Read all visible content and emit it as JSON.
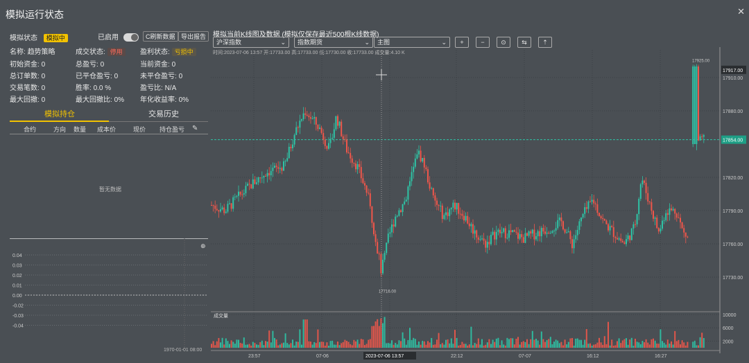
{
  "window": {
    "title": "模拟运行状态",
    "close_icon": "close-icon"
  },
  "left": {
    "row1": {
      "label": "模拟状态",
      "badge": "模拟中",
      "toggle_label": "已启用",
      "btn1": "C刷新数据",
      "btn2": "导出报告"
    },
    "row2": [
      {
        "label": "名称:",
        "value": "趋势策略"
      },
      {
        "label": "成交状态:",
        "value": "停用"
      },
      {
        "label": "盈利状态:",
        "value": "亏损中"
      }
    ],
    "row3": [
      {
        "label": "初始资金:",
        "value": "0"
      },
      {
        "label": "总盈亏:",
        "value": "0"
      },
      {
        "label": "当前资金:",
        "value": "0"
      }
    ],
    "row4": [
      {
        "label": "总订单数:",
        "value": "0"
      },
      {
        "label": "已平仓盈亏:",
        "value": "0"
      },
      {
        "label": "未平仓盈亏:",
        "value": "0"
      }
    ],
    "row5": [
      {
        "label": "交易笔数:",
        "value": "0"
      },
      {
        "label": "胜率:",
        "value": "0.0 %"
      },
      {
        "label": "盈亏比:",
        "value": "N/A"
      }
    ],
    "row6": [
      {
        "label": "最大回撤:",
        "value": "0"
      },
      {
        "label": "最大回撤比:",
        "value": "0%"
      },
      {
        "label": "年化收益率:",
        "value": "0%"
      }
    ],
    "tabs": [
      "模拟持仓",
      "交易历史"
    ],
    "columns": [
      "合约",
      "方向",
      "数量",
      "成本价",
      "现价",
      "持仓盈亏"
    ],
    "empty_text": "暂无数据",
    "mini_chart": {
      "y_ticks": [
        "0.04",
        "0.03",
        "0.02",
        "0.01",
        "0.00",
        "-0.02",
        "-0.03",
        "-0.04"
      ],
      "date_label": "1970-01-01 08:00"
    }
  },
  "right": {
    "title": "模拟当前K线图及数据 (模拟仅保存最近500根K线数据)",
    "selects": [
      "沪深指数",
      "指数期货",
      "主图"
    ],
    "tools": [
      "+",
      "−",
      "⊙",
      "⇆",
      "⇡"
    ],
    "ohlc": "时间:2023-07-06 13:57  开:17733.00  高:17733.00  低:17730.00  收:17733.00  成交量:4.10 K",
    "price_ticks": [
      "17917.00",
      "17910.00",
      "17880.00",
      "17854.00",
      "17820.00",
      "17790.00",
      "17760.00",
      "17730.00"
    ],
    "current_price": "17854.00",
    "high_label": "17917.00",
    "peak_annot": "17925.00",
    "low_annot": "17716.00",
    "vol_ticks": [
      "10000",
      "6000",
      "2000"
    ],
    "vol_legend": "成交量",
    "x_ticks": [
      "23:57",
      "07-06",
      "2023-07-06 13:57",
      "22:12",
      "07-07",
      "16:12",
      "16:27"
    ]
  },
  "chart_data": {
    "type": "candlestick",
    "price_axis": [
      17730,
      17760,
      17790,
      17820,
      17880,
      17910,
      17917
    ],
    "volume_axis": [
      2000,
      6000,
      10000
    ]
  }
}
